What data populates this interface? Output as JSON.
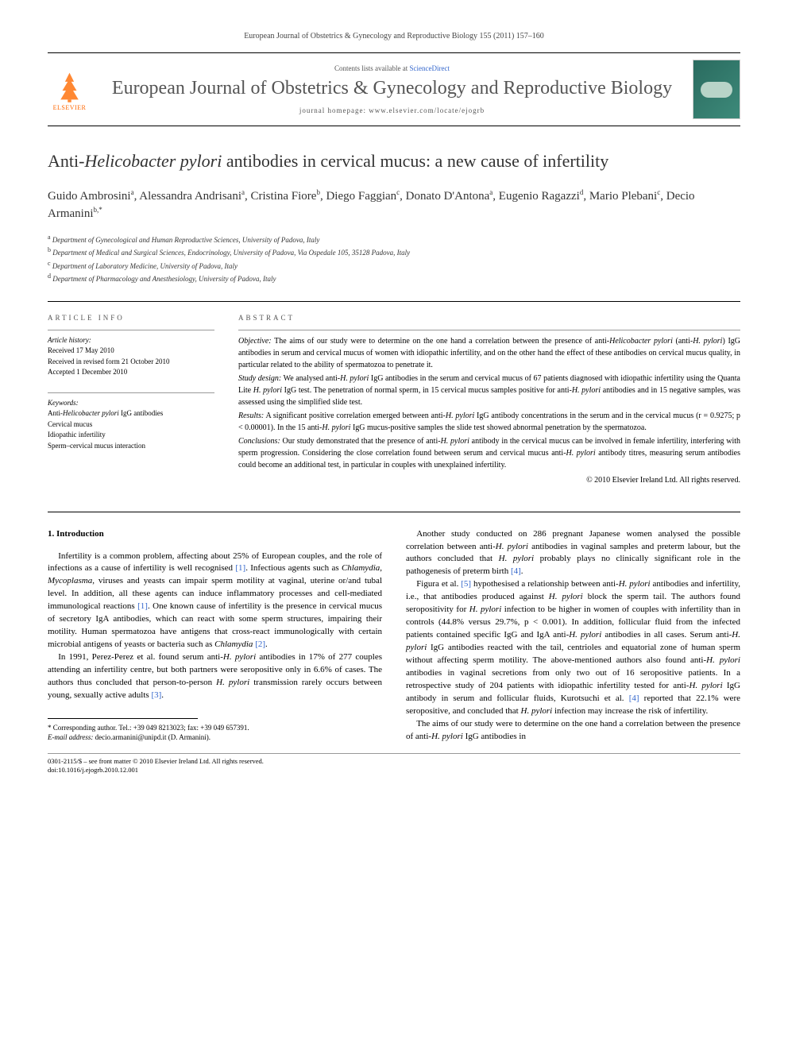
{
  "header": {
    "citation": "European Journal of Obstetrics & Gynecology and Reproductive Biology 155 (2011) 157–160"
  },
  "masthead": {
    "elsevier": "ELSEVIER",
    "contents_prefix": "Contents lists available at ",
    "sciencedirect": "ScienceDirect",
    "journal_name": "European Journal of Obstetrics & Gynecology and Reproductive Biology",
    "homepage": "journal homepage: www.elsevier.com/locate/ejogrb"
  },
  "title": {
    "pre": "Anti-",
    "italic": "Helicobacter pylori",
    "post": " antibodies in cervical mucus: a new cause of infertility"
  },
  "authors": [
    {
      "name": "Guido Ambrosini",
      "sup": "a"
    },
    {
      "name": "Alessandra Andrisani",
      "sup": "a"
    },
    {
      "name": "Cristina Fiore",
      "sup": "b"
    },
    {
      "name": "Diego Faggian",
      "sup": "c"
    },
    {
      "name": "Donato D'Antona",
      "sup": "a"
    },
    {
      "name": "Eugenio Ragazzi",
      "sup": "d"
    },
    {
      "name": "Mario Plebani",
      "sup": "c"
    },
    {
      "name": "Decio Armanini",
      "sup": "b,*"
    }
  ],
  "affiliations": [
    {
      "sup": "a",
      "text": "Department of Gynecological and Human Reproductive Sciences, University of Padova, Italy"
    },
    {
      "sup": "b",
      "text": "Department of Medical and Surgical Sciences, Endocrinology, University of Padova, Via Ospedale 105, 35128 Padova, Italy"
    },
    {
      "sup": "c",
      "text": "Department of Laboratory Medicine, University of Padova, Italy"
    },
    {
      "sup": "d",
      "text": "Department of Pharmacology and Anesthesiology, University of Padova, Italy"
    }
  ],
  "info": {
    "header_info": "ARTICLE INFO",
    "header_abstract": "ABSTRACT",
    "history_label": "Article history:",
    "received": "Received 17 May 2010",
    "revised": "Received in revised form 21 October 2010",
    "accepted": "Accepted 1 December 2010",
    "keywords_label": "Keywords:",
    "keywords": [
      "Anti-Helicobacter pylori IgG antibodies",
      "Cervical mucus",
      "Idiopathic infertility",
      "Sperm–cervical mucus interaction"
    ]
  },
  "abstract": {
    "objective_label": "Objective:",
    "objective": "The aims of our study were to determine on the one hand a correlation between the presence of anti-Helicobacter pylori (anti-H. pylori) IgG antibodies in serum and cervical mucus of women with idiopathic infertility, and on the other hand the effect of these antibodies on cervical mucus quality, in particular related to the ability of spermatozoa to penetrate it.",
    "design_label": "Study design:",
    "design": "We analysed anti-H. pylori IgG antibodies in the serum and cervical mucus of 67 patients diagnosed with idiopathic infertility using the Quanta Lite H. pylori IgG test. The penetration of normal sperm, in 15 cervical mucus samples positive for anti-H. pylori antibodies and in 15 negative samples, was assessed using the simplified slide test.",
    "results_label": "Results:",
    "results": "A significant positive correlation emerged between anti-H. pylori IgG antibody concentrations in the serum and in the cervical mucus (r = 0.9275; p < 0.00001). In the 15 anti-H. pylori IgG mucus-positive samples the slide test showed abnormal penetration by the spermatozoa.",
    "conclusions_label": "Conclusions:",
    "conclusions": "Our study demonstrated that the presence of anti-H. pylori antibody in the cervical mucus can be involved in female infertility, interfering with sperm progression. Considering the close correlation found between serum and cervical mucus anti-H. pylori antibody titres, measuring serum antibodies could become an additional test, in particular in couples with unexplained infertility.",
    "copyright": "© 2010 Elsevier Ireland Ltd. All rights reserved."
  },
  "section1": {
    "heading": "1. Introduction",
    "p1": "Infertility is a common problem, affecting about 25% of European couples, and the role of infections as a cause of infertility is well recognised [1]. Infectious agents such as Chlamydia, Mycoplasma, viruses and yeasts can impair sperm motility at vaginal, uterine or/and tubal level. In addition, all these agents can induce inflammatory processes and cell-mediated immunological reactions [1]. One known cause of infertility is the presence in cervical mucus of secretory IgA antibodies, which can react with some sperm structures, impairing their motility. Human spermatozoa have antigens that cross-react immunologically with certain microbial antigens of yeasts or bacteria such as Chlamydia [2].",
    "p2": "In 1991, Perez-Perez et al. found serum anti-H. pylori antibodies in 17% of 277 couples attending an infertility centre, but both partners were seropositive only in 6.6% of cases. The authors thus concluded that person-to-person H. pylori transmission rarely occurs between young, sexually active adults [3].",
    "p3": "Another study conducted on 286 pregnant Japanese women analysed the possible correlation between anti-H. pylori antibodies in vaginal samples and preterm labour, but the authors concluded that H. pylori probably plays no clinically significant role in the pathogenesis of preterm birth [4].",
    "p4": "Figura et al. [5] hypothesised a relationship between anti-H. pylori antibodies and infertility, i.e., that antibodies produced against H. pylori block the sperm tail. The authors found seropositivity for H. pylori infection to be higher in women of couples with infertility than in controls (44.8% versus 29.7%, p < 0.001). In addition, follicular fluid from the infected patients contained specific IgG and IgA anti-H. pylori antibodies in all cases. Serum anti-H. pylori IgG antibodies reacted with the tail, centrioles and equatorial zone of human sperm without affecting sperm motility. The above-mentioned authors also found anti-H. pylori antibodies in vaginal secretions from only two out of 16 seropositive patients. In a retrospective study of 204 patients with idiopathic infertility tested for anti-H. pylori IgG antibody in serum and follicular fluids, Kurotsuchi et al. [4] reported that 22.1% were seropositive, and concluded that H. pylori infection may increase the risk of infertility.",
    "p5": "The aims of our study were to determine on the one hand a correlation between the presence of anti-H. pylori IgG antibodies in"
  },
  "footnotes": {
    "corresponding": "* Corresponding author. Tel.: +39 049 8213023; fax: +39 049 657391.",
    "email_label": "E-mail address:",
    "email": "decio.armanini@unipd.it",
    "email_name": "(D. Armanini)."
  },
  "bottom": {
    "left": "0301-2115/$ – see front matter © 2010 Elsevier Ireland Ltd. All rights reserved.\ndoi:10.1016/j.ejogrb.2010.12.001"
  }
}
